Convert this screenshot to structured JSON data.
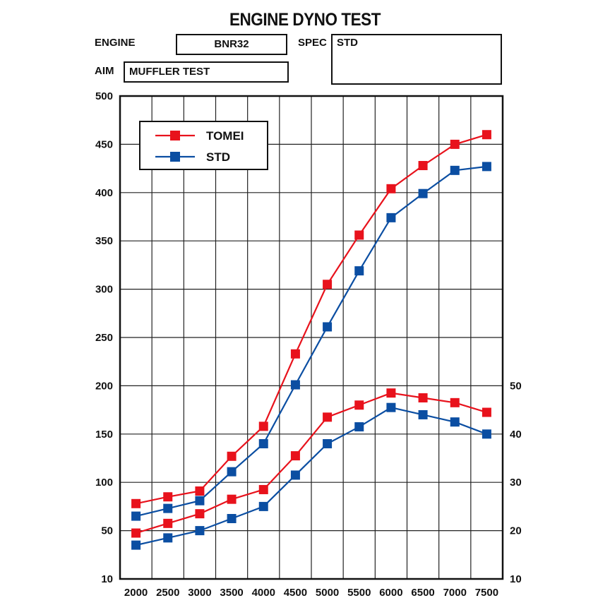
{
  "header": {
    "title": "ENGINE DYNO TEST",
    "engine_label": "ENGINE",
    "engine_value": "BNR32",
    "spec_label": "SPEC",
    "spec_value": "STD",
    "aim_label": "AIM",
    "aim_value": "MUFFLER TEST"
  },
  "chart_data": {
    "type": "line",
    "title": "ENGINE DYNO TEST",
    "categories": [
      "2000",
      "2500",
      "3000",
      "3500",
      "4000",
      "4500",
      "5000",
      "5500",
      "6000",
      "6500",
      "7000",
      "7500"
    ],
    "x": [
      2000,
      2500,
      3000,
      3500,
      4000,
      4500,
      5000,
      5500,
      6000,
      6500,
      7000,
      7500
    ],
    "left_axis": {
      "ticks": [
        10,
        50,
        100,
        150,
        200,
        250,
        300,
        350,
        400,
        450,
        500
      ],
      "ylim": [
        10,
        500
      ]
    },
    "right_axis": {
      "ticks": [
        10,
        20,
        30,
        40,
        50
      ],
      "ylim": [
        10,
        50
      ]
    },
    "grid": true,
    "legend": {
      "placement": "top-left",
      "entries": [
        "TOMEI",
        "STD"
      ]
    },
    "colors": {
      "TOMEI": "#e8121c",
      "STD": "#0b4ea2"
    },
    "series": [
      {
        "name": "TOMEI",
        "axis": "left",
        "values": [
          78,
          85,
          91,
          127,
          158,
          233,
          305,
          356,
          404,
          428,
          450,
          460
        ]
      },
      {
        "name": "STD",
        "axis": "left",
        "values": [
          65,
          73,
          81,
          111,
          140,
          201,
          261,
          319,
          374,
          399,
          423,
          427
        ]
      },
      {
        "name": "TOMEI",
        "axis": "right",
        "values": [
          19.5,
          21.5,
          23.5,
          26.5,
          28.5,
          35.5,
          43.5,
          46,
          48.5,
          47.5,
          46.5,
          44.5
        ]
      },
      {
        "name": "STD",
        "axis": "right",
        "values": [
          17,
          18.5,
          20,
          22.5,
          25,
          31.5,
          38,
          41.5,
          45.5,
          44,
          42.5,
          40
        ]
      }
    ]
  }
}
